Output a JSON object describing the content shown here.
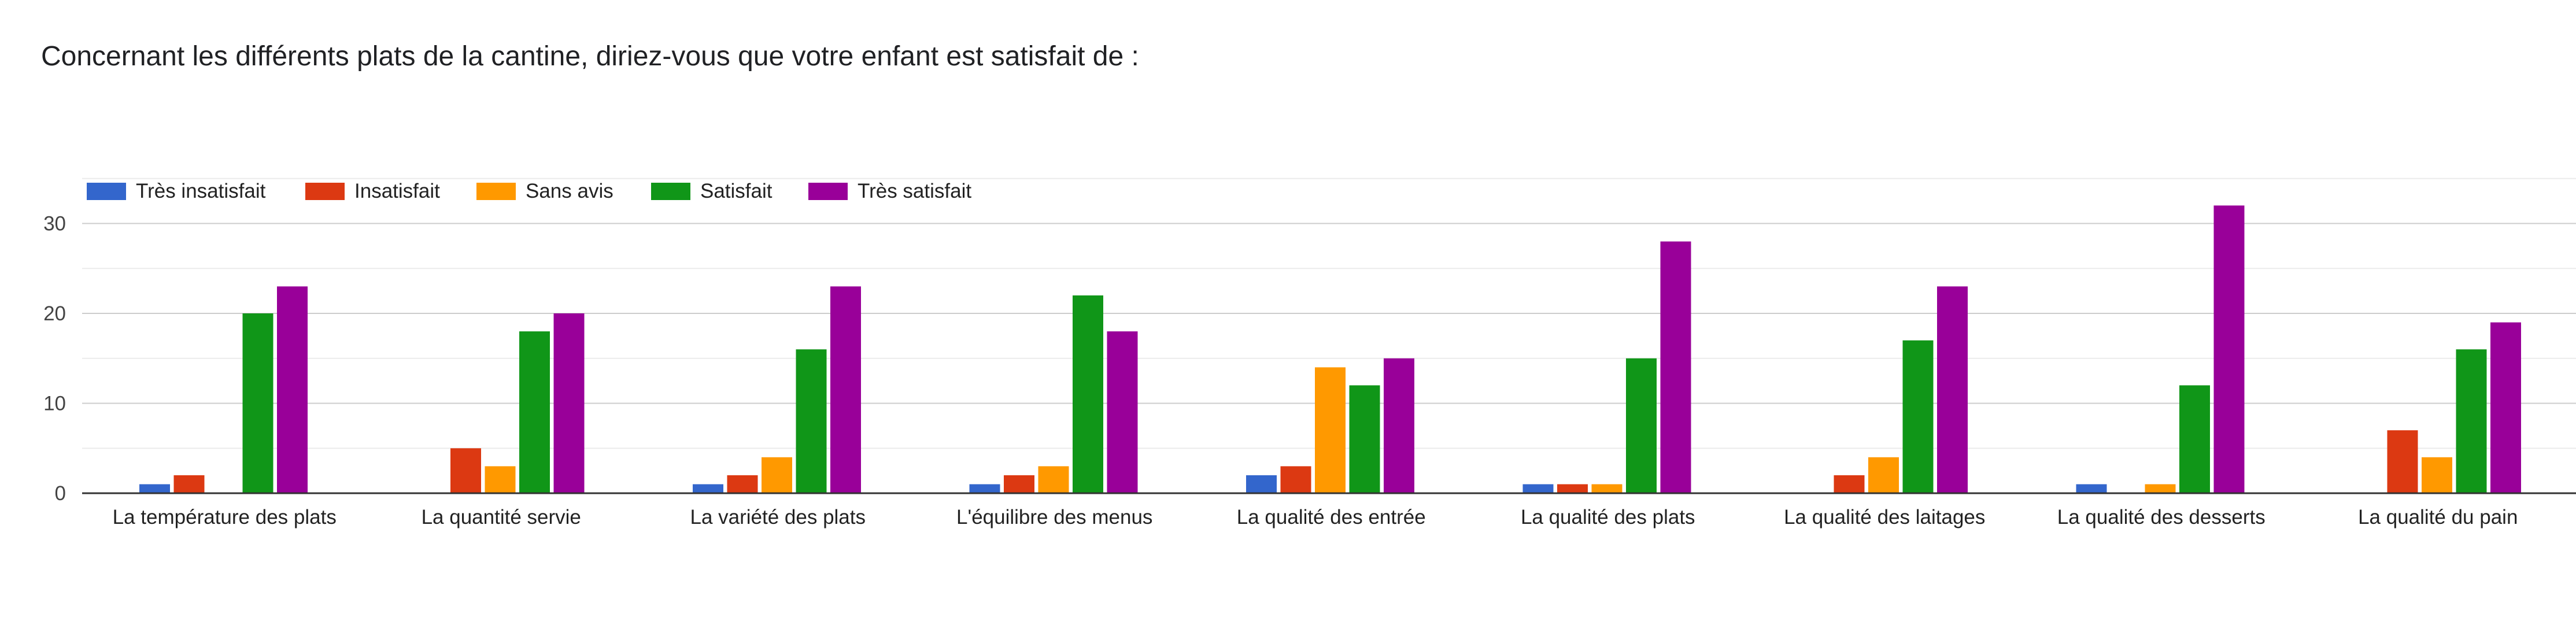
{
  "question": {
    "title": "Concernant les différents plats de la cantine, diriez-vous que votre enfant est satisfait de :"
  },
  "chart_data": {
    "type": "bar",
    "categories": [
      "La température des plats",
      "La quantité servie",
      "La variété des plats",
      "L'équilibre des menus",
      "La qualité des entrée",
      "La qualité des plats",
      "La qualité des laitages",
      "La qualité des desserts",
      "La qualité du pain"
    ],
    "series": [
      {
        "name": "Très insatisfait",
        "color": "#3366cc",
        "values": [
          1,
          0,
          1,
          1,
          2,
          1,
          0,
          1,
          0
        ]
      },
      {
        "name": "Insatisfait",
        "color": "#dc3912",
        "values": [
          2,
          5,
          2,
          2,
          3,
          1,
          2,
          0,
          7
        ]
      },
      {
        "name": "Sans avis",
        "color": "#ff9900",
        "values": [
          0,
          3,
          4,
          3,
          14,
          1,
          4,
          1,
          4
        ]
      },
      {
        "name": "Satisfait",
        "color": "#109618",
        "values": [
          20,
          18,
          16,
          22,
          12,
          15,
          17,
          12,
          16
        ]
      },
      {
        "name": "Très satisfait",
        "color": "#990099",
        "values": [
          23,
          20,
          23,
          18,
          15,
          28,
          23,
          32,
          19
        ]
      }
    ],
    "yticks": [
      0,
      10,
      20,
      30
    ],
    "ylim": [
      0,
      35
    ],
    "grid": true,
    "legend_position": "top-left",
    "xlabel": "",
    "ylabel": "",
    "title": ""
  }
}
